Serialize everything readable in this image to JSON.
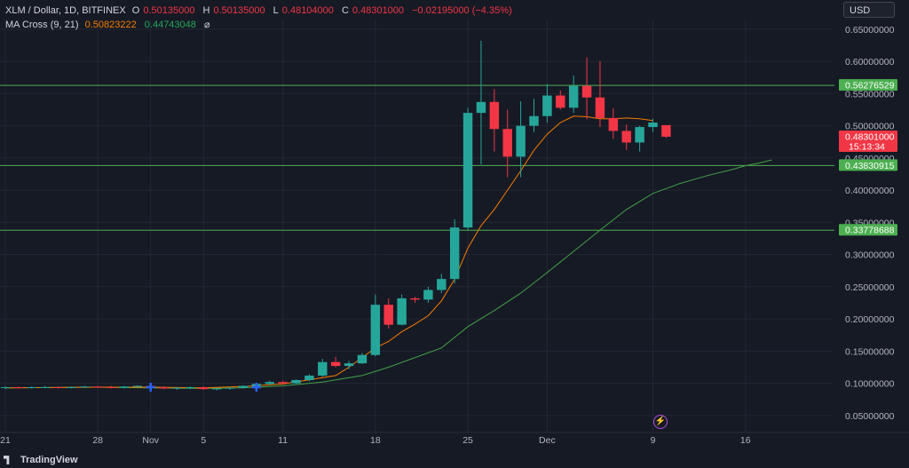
{
  "header": {
    "symbol": "XLM / Dollar, 1D, BITFINEX",
    "o_key": "O",
    "o_val": "0.50135000",
    "h_key": "H",
    "h_val": "0.50135000",
    "l_key": "L",
    "l_val": "0.48104000",
    "c_key": "C",
    "c_val": "0.48301000",
    "change": "−0.02195000 (−4.35%)",
    "ma_label": "MA Cross (9, 21)",
    "ma_fast": "0.50823222",
    "ma_slow": "0.44743048",
    "ma_eye": "⌀"
  },
  "currency": "USD",
  "brand": "TradingView",
  "colors": {
    "up": "#26a69a",
    "down": "#f23645",
    "ma_fast": "#f57c00",
    "ma_slow": "#43a047",
    "hline": "#4caf50",
    "grid": "#232733",
    "axis_text": "#b2b5be",
    "bg": "#161a25"
  },
  "chart_data": {
    "type": "candlestick",
    "y_ticks": [
      "0.65000000",
      "0.60000000",
      "0.55000000",
      "0.50000000",
      "0.45000000",
      "0.40000000",
      "0.35000000",
      "0.30000000",
      "0.25000000",
      "0.20000000",
      "0.15000000",
      "0.10000000",
      "0.05000000"
    ],
    "y_tick_values": [
      0.65,
      0.6,
      0.55,
      0.5,
      0.45,
      0.4,
      0.35,
      0.3,
      0.25,
      0.2,
      0.15,
      0.1,
      0.05
    ],
    "ylim": [
      0.025,
      0.665
    ],
    "x_ticks": [
      {
        "label": "21",
        "day": -11
      },
      {
        "label": "28",
        "day": -4
      },
      {
        "label": "Nov",
        "day": 0
      },
      {
        "label": "5",
        "day": 4
      },
      {
        "label": "11",
        "day": 10
      },
      {
        "label": "18",
        "day": 17
      },
      {
        "label": "25",
        "day": 24
      },
      {
        "label": "Dec",
        "day": 30
      },
      {
        "label": "9",
        "day": 38
      },
      {
        "label": "16",
        "day": 45
      }
    ],
    "xlim_days": [
      -11.4,
      51.6
    ],
    "horizontal_levels": [
      {
        "value": 0.56276529,
        "label": "0.56276529"
      },
      {
        "value": 0.43830915,
        "label": "0.43830915"
      },
      {
        "value": 0.33778688,
        "label": "0.33778688"
      }
    ],
    "last_price": {
      "value": 0.48301,
      "label": "0.48301000",
      "countdown": "15:13:34"
    },
    "candles_ohlc_from_day_minus11": [
      [
        0.093,
        0.095,
        0.091,
        0.094
      ],
      [
        0.094,
        0.095,
        0.092,
        0.093
      ],
      [
        0.093,
        0.095,
        0.092,
        0.094
      ],
      [
        0.094,
        0.096,
        0.093,
        0.094
      ],
      [
        0.094,
        0.095,
        0.092,
        0.093
      ],
      [
        0.093,
        0.095,
        0.092,
        0.094
      ],
      [
        0.094,
        0.096,
        0.093,
        0.095
      ],
      [
        0.095,
        0.096,
        0.093,
        0.094
      ],
      [
        0.094,
        0.096,
        0.092,
        0.093
      ],
      [
        0.093,
        0.096,
        0.092,
        0.095
      ],
      [
        0.095,
        0.097,
        0.094,
        0.096
      ],
      [
        0.096,
        0.097,
        0.093,
        0.094
      ],
      [
        0.094,
        0.095,
        0.091,
        0.092
      ],
      [
        0.092,
        0.094,
        0.09,
        0.093
      ],
      [
        0.093,
        0.095,
        0.091,
        0.094
      ],
      [
        0.094,
        0.095,
        0.09,
        0.091
      ],
      [
        0.091,
        0.093,
        0.089,
        0.092
      ],
      [
        0.092,
        0.094,
        0.09,
        0.093
      ],
      [
        0.093,
        0.097,
        0.092,
        0.096
      ],
      [
        0.096,
        0.1,
        0.095,
        0.099
      ],
      [
        0.099,
        0.104,
        0.097,
        0.102
      ],
      [
        0.102,
        0.104,
        0.098,
        0.1
      ],
      [
        0.1,
        0.106,
        0.099,
        0.105
      ],
      [
        0.105,
        0.114,
        0.103,
        0.112
      ],
      [
        0.112,
        0.138,
        0.11,
        0.133
      ],
      [
        0.133,
        0.141,
        0.125,
        0.127
      ],
      [
        0.127,
        0.135,
        0.122,
        0.131
      ],
      [
        0.131,
        0.147,
        0.13,
        0.144
      ],
      [
        0.144,
        0.238,
        0.142,
        0.222
      ],
      [
        0.222,
        0.232,
        0.185,
        0.191
      ],
      [
        0.191,
        0.238,
        0.19,
        0.232
      ],
      [
        0.232,
        0.234,
        0.225,
        0.23
      ],
      [
        0.23,
        0.25,
        0.225,
        0.245
      ],
      [
        0.245,
        0.27,
        0.24,
        0.262
      ],
      [
        0.262,
        0.355,
        0.255,
        0.342
      ],
      [
        0.342,
        0.528,
        0.337,
        0.52
      ],
      [
        0.52,
        0.632,
        0.44,
        0.537
      ],
      [
        0.537,
        0.557,
        0.46,
        0.495
      ],
      [
        0.495,
        0.525,
        0.42,
        0.452
      ],
      [
        0.452,
        0.538,
        0.42,
        0.5
      ],
      [
        0.5,
        0.542,
        0.49,
        0.515
      ],
      [
        0.515,
        0.565,
        0.505,
        0.547
      ],
      [
        0.547,
        0.555,
        0.525,
        0.528
      ],
      [
        0.528,
        0.578,
        0.52,
        0.562
      ],
      [
        0.562,
        0.606,
        0.51,
        0.544
      ],
      [
        0.544,
        0.6,
        0.498,
        0.512
      ],
      [
        0.512,
        0.527,
        0.48,
        0.492
      ],
      [
        0.492,
        0.502,
        0.462,
        0.474
      ],
      [
        0.474,
        0.5,
        0.46,
        0.498
      ],
      [
        0.498,
        0.511,
        0.49,
        0.505
      ],
      [
        0.501,
        0.501,
        0.481,
        0.483
      ]
    ],
    "ma_fast_series": [
      [
        -11,
        0.093
      ],
      [
        -4,
        0.094
      ],
      [
        0,
        0.094
      ],
      [
        4,
        0.093
      ],
      [
        7,
        0.095
      ],
      [
        10,
        0.099
      ],
      [
        14,
        0.112
      ],
      [
        15,
        0.125
      ],
      [
        16,
        0.14
      ],
      [
        17,
        0.155
      ],
      [
        18,
        0.165
      ],
      [
        19,
        0.18
      ],
      [
        20,
        0.192
      ],
      [
        21,
        0.205
      ],
      [
        22,
        0.228
      ],
      [
        23,
        0.262
      ],
      [
        24,
        0.31
      ],
      [
        25,
        0.345
      ],
      [
        26,
        0.37
      ],
      [
        27,
        0.4
      ],
      [
        28,
        0.43
      ],
      [
        29,
        0.462
      ],
      [
        30,
        0.487
      ],
      [
        31,
        0.505
      ],
      [
        32,
        0.515
      ],
      [
        33,
        0.514
      ],
      [
        34,
        0.511
      ],
      [
        35,
        0.511
      ],
      [
        36,
        0.512
      ],
      [
        37,
        0.511
      ],
      [
        38,
        0.508
      ]
    ],
    "ma_slow_series": [
      [
        -11,
        0.093
      ],
      [
        -4,
        0.094
      ],
      [
        0,
        0.093
      ],
      [
        4,
        0.092
      ],
      [
        7,
        0.093
      ],
      [
        10,
        0.096
      ],
      [
        13,
        0.102
      ],
      [
        16,
        0.112
      ],
      [
        18,
        0.125
      ],
      [
        20,
        0.14
      ],
      [
        22,
        0.155
      ],
      [
        24,
        0.188
      ],
      [
        26,
        0.213
      ],
      [
        28,
        0.24
      ],
      [
        30,
        0.272
      ],
      [
        32,
        0.305
      ],
      [
        34,
        0.338
      ],
      [
        36,
        0.37
      ],
      [
        38,
        0.395
      ],
      [
        40,
        0.41
      ],
      [
        42,
        0.422
      ],
      [
        44,
        0.432
      ],
      [
        45,
        0.438
      ],
      [
        46,
        0.442
      ],
      [
        47,
        0.447
      ]
    ],
    "markers": [
      {
        "day": 0
      },
      {
        "day": 8
      }
    ],
    "grid": true
  }
}
